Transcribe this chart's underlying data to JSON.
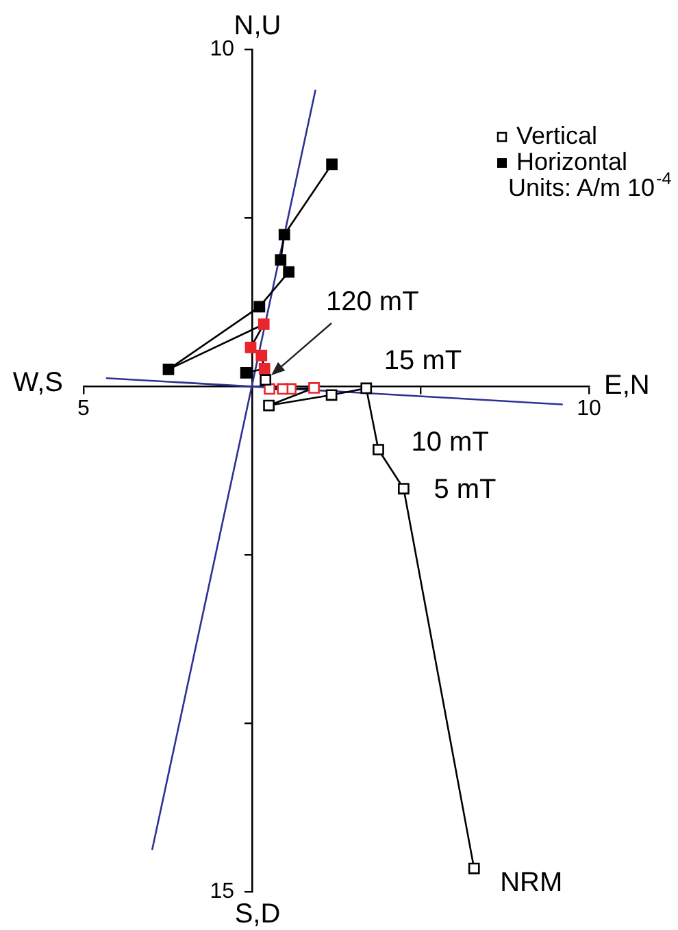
{
  "chart_data": {
    "type": "line",
    "xlabel": "E,N",
    "ylabel": "N,U",
    "xlim": [
      -5,
      10
    ],
    "xticks": [
      {
        "value": -5,
        "label": "5"
      },
      {
        "value": 5,
        "label": null
      },
      10
    ],
    "ylim": [
      -15,
      10
    ],
    "yticks": [
      {
        "value": -15,
        "label": "15"
      },
      {
        "value": -10,
        "label": null
      },
      {
        "value": -5,
        "label": null
      },
      {
        "value": 5,
        "label": null
      },
      10
    ],
    "marker": "square",
    "legend": "top right",
    "series": [
      {
        "name": "Vertical",
        "color": "#000000",
        "colors": [
          "#000000",
          "#000000",
          "#000000",
          "#000000",
          "#000000",
          "#000000",
          "#e8262b",
          "#e8262b",
          "#e8262b",
          "#e8262b",
          "#000000"
        ],
        "x": [
          6.59,
          4.5,
          3.75,
          3.39,
          2.36,
          0.5,
          1.84,
          1.15,
          0.91,
          0.52,
          0.4
        ],
        "values": [
          -14.31,
          -3.04,
          -1.88,
          -0.06,
          -0.26,
          -0.57,
          -0.05,
          -0.08,
          -0.08,
          -0.08,
          0.19
        ]
      },
      {
        "name": "Horizontal",
        "color": "#000000",
        "colors": [
          "#000000",
          "#000000",
          "#000000",
          "#000000",
          "#000000",
          "#000000",
          "#e8262b",
          "#e8262b",
          "#e8262b",
          "#e8262b",
          "#000000"
        ],
        "x": [
          2.37,
          0.96,
          0.85,
          1.09,
          0.22,
          -2.48,
          0.35,
          -0.04,
          0.28,
          0.37,
          -0.18
        ],
        "values": [
          6.59,
          4.5,
          3.75,
          3.39,
          2.36,
          0.5,
          1.84,
          1.15,
          0.91,
          0.52,
          0.4
        ]
      },
      {
        "color": "#2e3192",
        "marker": "none",
        "x": [
          -4.31,
          9.2
        ],
        "values": [
          0.24,
          -0.54
        ]
      },
      {
        "color": "#2e3192",
        "marker": "none",
        "x": [
          1.88,
          -2.96
        ],
        "values": [
          8.78,
          -13.74
        ]
      }
    ],
    "annotations": [
      "W,S",
      "S,D",
      {
        "text": "NRM",
        "x": 6.59,
        "y": -14.31
      },
      {
        "text": "5 mT",
        "x": 4.5,
        "y": -3.04
      },
      {
        "text": "10 mT",
        "x": 3.75,
        "y": -1.88
      },
      {
        "text": "15 mT",
        "x": 3.39,
        "y": -0.06
      },
      "120 mT",
      "Units: A/m 10$^{-4}$"
    ]
  }
}
